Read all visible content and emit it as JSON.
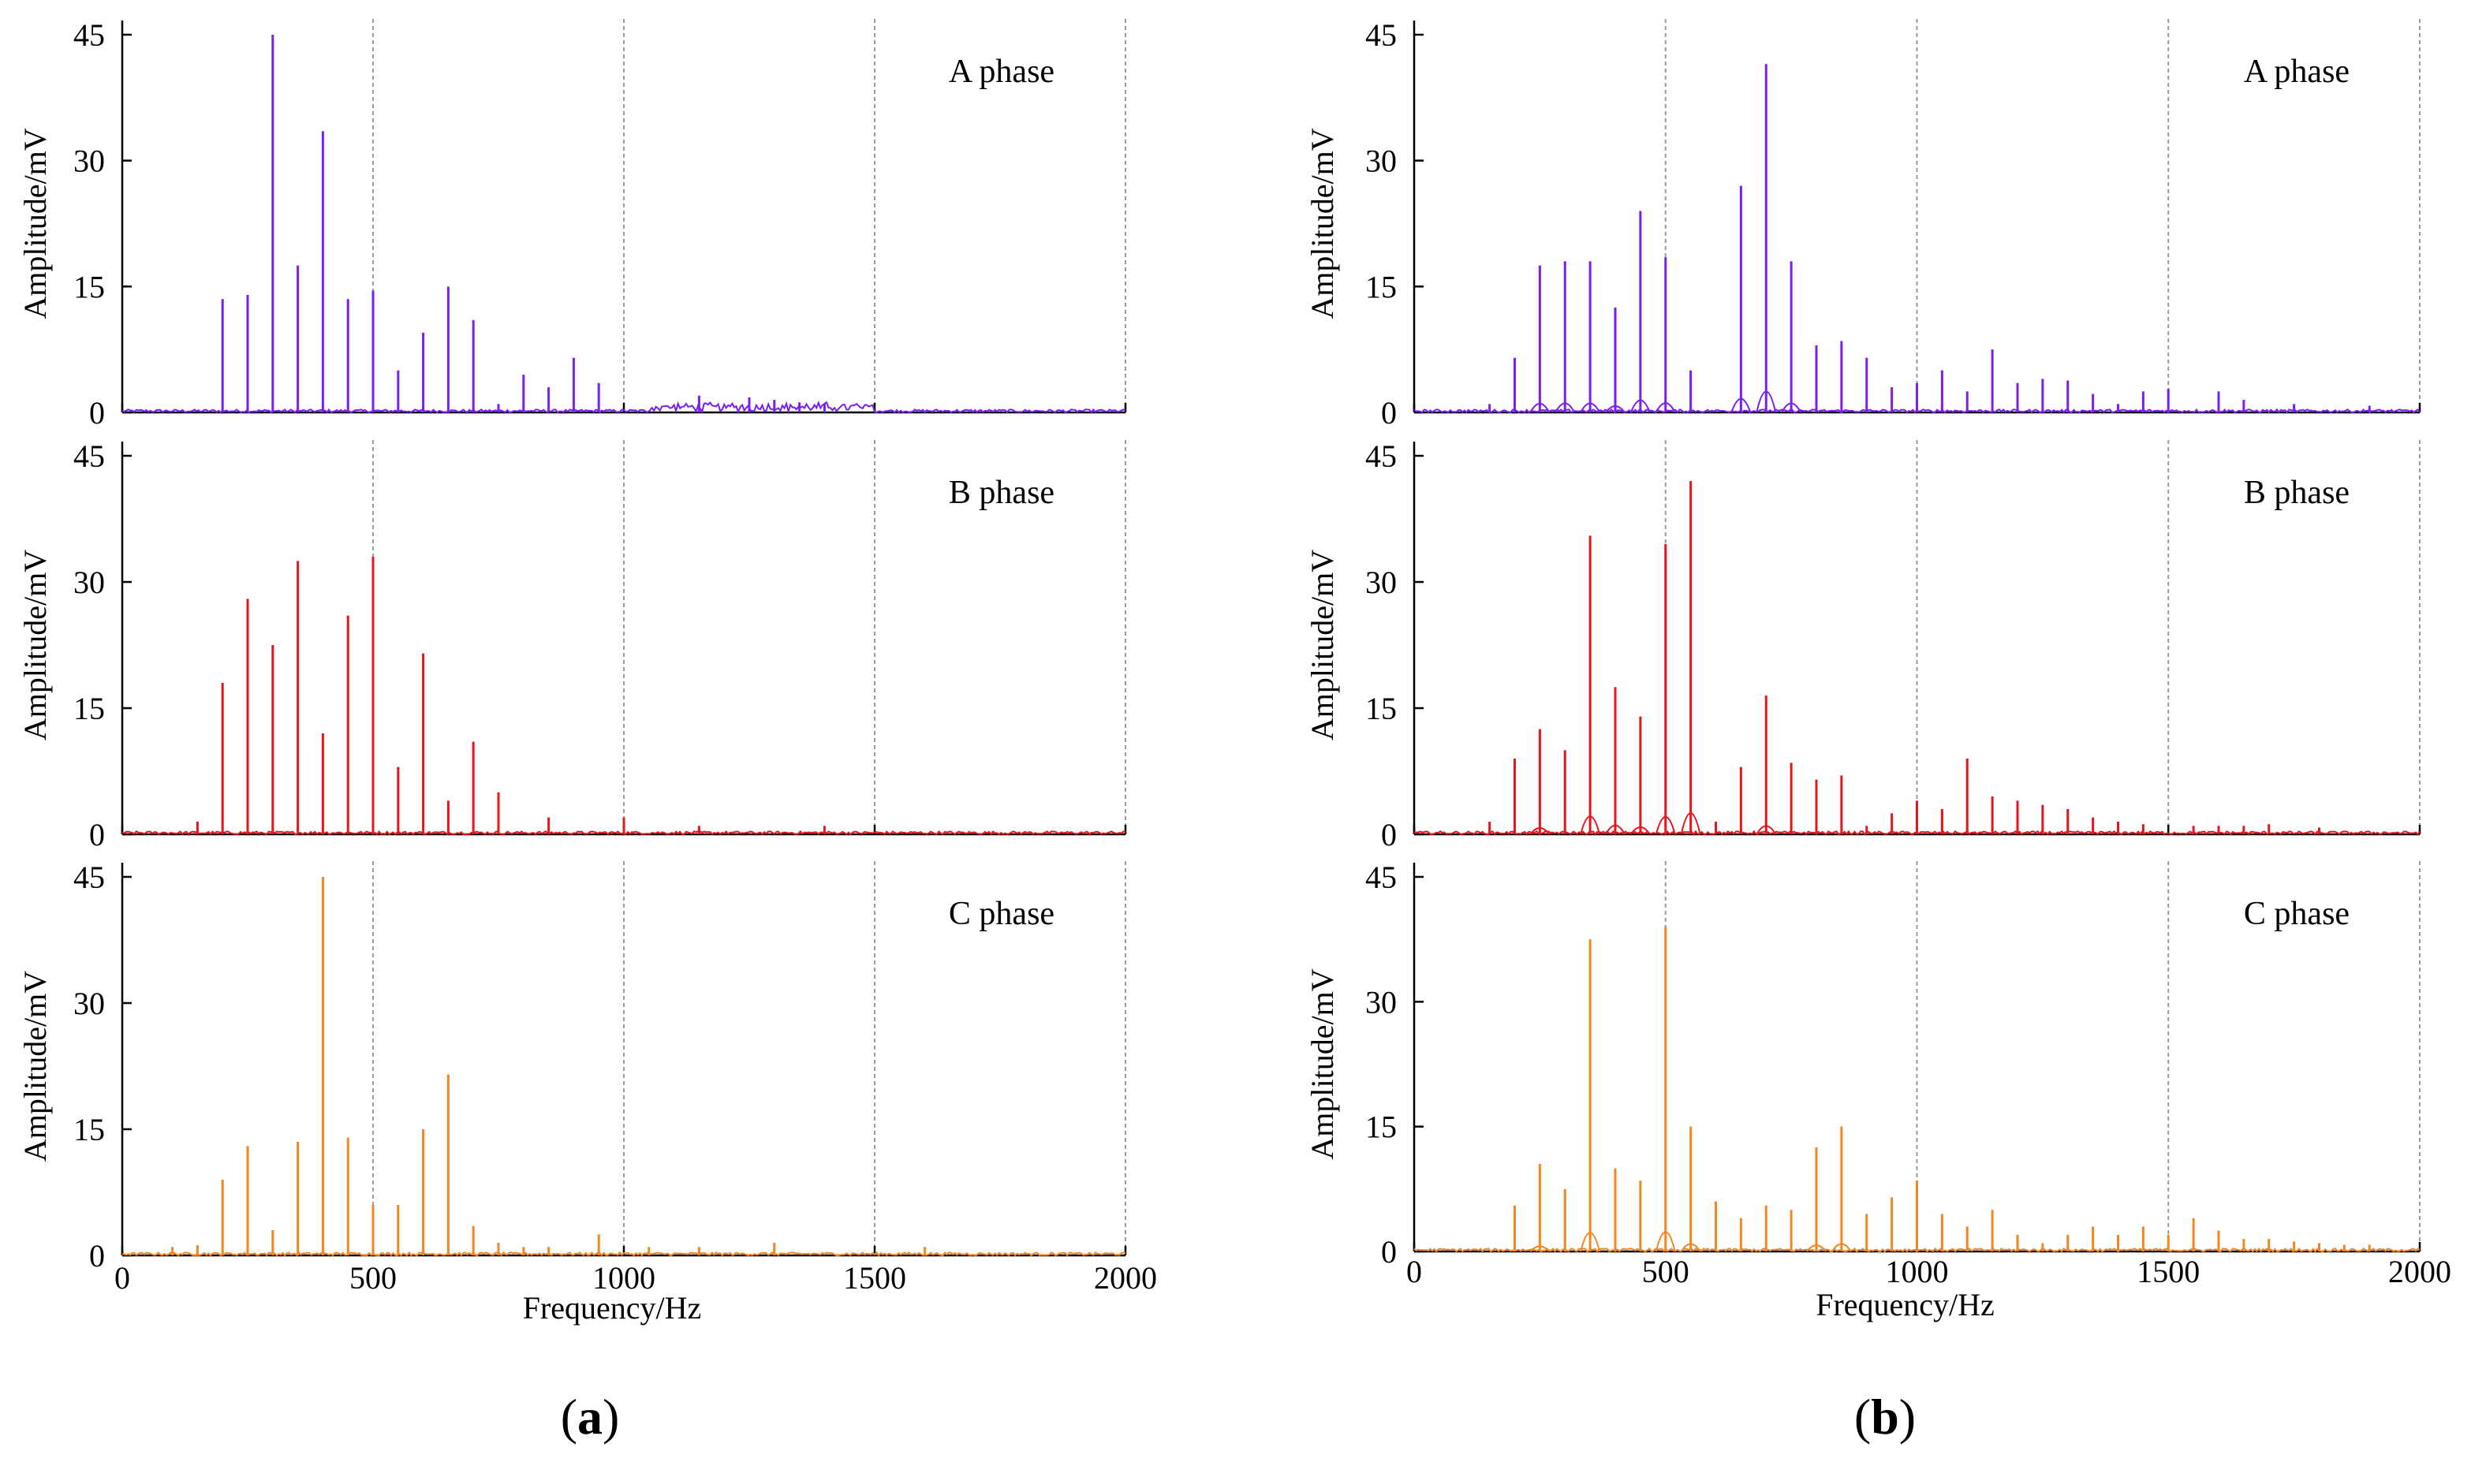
{
  "chart_data": [
    {
      "type": "line",
      "id": "a",
      "panel_label": "a",
      "xlabel": "Frequency/Hz",
      "ylabel": "Amplitude/mV",
      "xlim": [
        0,
        2000
      ],
      "ylim": [
        0,
        45
      ],
      "xticks": [
        0,
        500,
        1000,
        1500,
        2000
      ],
      "yticks": [
        0,
        15,
        30,
        45
      ],
      "grid": "vertical dashed",
      "subplots": [
        {
          "phase": "A phase",
          "color": "#7a1ff0",
          "peaks": [
            {
              "f": 200,
              "a": 13.5
            },
            {
              "f": 250,
              "a": 14
            },
            {
              "f": 300,
              "a": 45
            },
            {
              "f": 350,
              "a": 17.5
            },
            {
              "f": 400,
              "a": 33.5
            },
            {
              "f": 450,
              "a": 13.5
            },
            {
              "f": 500,
              "a": 14.5
            },
            {
              "f": 550,
              "a": 5
            },
            {
              "f": 600,
              "a": 9.5
            },
            {
              "f": 650,
              "a": 15
            },
            {
              "f": 700,
              "a": 11
            },
            {
              "f": 750,
              "a": 1
            },
            {
              "f": 800,
              "a": 4.5
            },
            {
              "f": 850,
              "a": 3
            },
            {
              "f": 900,
              "a": 6.5
            },
            {
              "f": 950,
              "a": 3.5
            },
            {
              "f": 1150,
              "a": 2
            },
            {
              "f": 1250,
              "a": 1.8
            },
            {
              "f": 1300,
              "a": 1.5
            },
            {
              "f": 1350,
              "a": 1.2
            },
            {
              "f": 1400,
              "a": 1
            }
          ]
        },
        {
          "phase": "B phase",
          "color": "#e8141a",
          "peaks": [
            {
              "f": 150,
              "a": 1.5
            },
            {
              "f": 200,
              "a": 18
            },
            {
              "f": 250,
              "a": 28
            },
            {
              "f": 300,
              "a": 22.5
            },
            {
              "f": 350,
              "a": 32.5
            },
            {
              "f": 400,
              "a": 12
            },
            {
              "f": 450,
              "a": 26
            },
            {
              "f": 500,
              "a": 33
            },
            {
              "f": 550,
              "a": 8
            },
            {
              "f": 600,
              "a": 21.5
            },
            {
              "f": 650,
              "a": 4
            },
            {
              "f": 700,
              "a": 11
            },
            {
              "f": 750,
              "a": 5
            },
            {
              "f": 850,
              "a": 2
            },
            {
              "f": 1000,
              "a": 2
            },
            {
              "f": 1150,
              "a": 1
            },
            {
              "f": 1400,
              "a": 1
            }
          ]
        },
        {
          "phase": "C phase",
          "color": "#f5861f",
          "peaks": [
            {
              "f": 100,
              "a": 1
            },
            {
              "f": 150,
              "a": 1.2
            },
            {
              "f": 200,
              "a": 9
            },
            {
              "f": 250,
              "a": 13
            },
            {
              "f": 300,
              "a": 3
            },
            {
              "f": 350,
              "a": 13.5
            },
            {
              "f": 400,
              "a": 45
            },
            {
              "f": 450,
              "a": 14
            },
            {
              "f": 500,
              "a": 6
            },
            {
              "f": 550,
              "a": 6
            },
            {
              "f": 600,
              "a": 15
            },
            {
              "f": 650,
              "a": 21.5
            },
            {
              "f": 700,
              "a": 3.5
            },
            {
              "f": 750,
              "a": 1.5
            },
            {
              "f": 800,
              "a": 1
            },
            {
              "f": 850,
              "a": 1
            },
            {
              "f": 950,
              "a": 2.5
            },
            {
              "f": 1050,
              "a": 1
            },
            {
              "f": 1150,
              "a": 1
            },
            {
              "f": 1300,
              "a": 1.5
            },
            {
              "f": 1600,
              "a": 1
            }
          ]
        }
      ]
    },
    {
      "type": "line",
      "id": "b",
      "panel_label": "b",
      "xlabel": "Frequency/Hz",
      "ylabel": "Amplitude/mV",
      "xlim": [
        0,
        2000
      ],
      "ylim": [
        0,
        45
      ],
      "xticks": [
        0,
        500,
        1000,
        1500,
        2000
      ],
      "yticks": [
        0,
        15,
        30,
        45
      ],
      "grid": "vertical dashed",
      "subplots": [
        {
          "phase": "A phase",
          "color": "#7a1ff0",
          "peaks": [
            {
              "f": 150,
              "a": 1
            },
            {
              "f": 200,
              "a": 6.5
            },
            {
              "f": 250,
              "a": 17.5
            },
            {
              "f": 300,
              "a": 18
            },
            {
              "f": 350,
              "a": 18
            },
            {
              "f": 400,
              "a": 12.5
            },
            {
              "f": 450,
              "a": 24
            },
            {
              "f": 500,
              "a": 18.5
            },
            {
              "f": 550,
              "a": 5
            },
            {
              "f": 650,
              "a": 27
            },
            {
              "f": 700,
              "a": 41.5
            },
            {
              "f": 750,
              "a": 18
            },
            {
              "f": 800,
              "a": 8
            },
            {
              "f": 850,
              "a": 8.5
            },
            {
              "f": 900,
              "a": 6.5
            },
            {
              "f": 950,
              "a": 3
            },
            {
              "f": 1000,
              "a": 3.5
            },
            {
              "f": 1050,
              "a": 5
            },
            {
              "f": 1100,
              "a": 2.5
            },
            {
              "f": 1150,
              "a": 7.5
            },
            {
              "f": 1200,
              "a": 3.5
            },
            {
              "f": 1250,
              "a": 4
            },
            {
              "f": 1300,
              "a": 3.8
            },
            {
              "f": 1350,
              "a": 2.2
            },
            {
              "f": 1400,
              "a": 1
            },
            {
              "f": 1450,
              "a": 2.5
            },
            {
              "f": 1500,
              "a": 2.8
            },
            {
              "f": 1600,
              "a": 2.5
            },
            {
              "f": 1650,
              "a": 1.5
            },
            {
              "f": 1750,
              "a": 1
            },
            {
              "f": 1900,
              "a": 0.8
            }
          ]
        },
        {
          "phase": "B phase",
          "color": "#e8141a",
          "peaks": [
            {
              "f": 150,
              "a": 1.5
            },
            {
              "f": 200,
              "a": 9
            },
            {
              "f": 250,
              "a": 12.5
            },
            {
              "f": 300,
              "a": 10
            },
            {
              "f": 350,
              "a": 35.5
            },
            {
              "f": 400,
              "a": 17.5
            },
            {
              "f": 450,
              "a": 14
            },
            {
              "f": 500,
              "a": 34.5
            },
            {
              "f": 550,
              "a": 42
            },
            {
              "f": 600,
              "a": 1.5
            },
            {
              "f": 650,
              "a": 8
            },
            {
              "f": 700,
              "a": 16.5
            },
            {
              "f": 750,
              "a": 8.5
            },
            {
              "f": 800,
              "a": 6.5
            },
            {
              "f": 850,
              "a": 7
            },
            {
              "f": 900,
              "a": 1
            },
            {
              "f": 950,
              "a": 2.5
            },
            {
              "f": 1000,
              "a": 4
            },
            {
              "f": 1050,
              "a": 3
            },
            {
              "f": 1100,
              "a": 9
            },
            {
              "f": 1150,
              "a": 4.5
            },
            {
              "f": 1200,
              "a": 4
            },
            {
              "f": 1250,
              "a": 3.5
            },
            {
              "f": 1300,
              "a": 3
            },
            {
              "f": 1350,
              "a": 2
            },
            {
              "f": 1400,
              "a": 1.5
            },
            {
              "f": 1450,
              "a": 1.2
            },
            {
              "f": 1550,
              "a": 1
            },
            {
              "f": 1600,
              "a": 1
            },
            {
              "f": 1650,
              "a": 1
            },
            {
              "f": 1700,
              "a": 1.2
            },
            {
              "f": 1800,
              "a": 0.8
            }
          ]
        },
        {
          "phase": "C phase",
          "color": "#f5861f",
          "peaks": [
            {
              "f": 200,
              "a": 5.5
            },
            {
              "f": 250,
              "a": 10.5
            },
            {
              "f": 300,
              "a": 7.5
            },
            {
              "f": 350,
              "a": 37.5
            },
            {
              "f": 400,
              "a": 10
            },
            {
              "f": 450,
              "a": 8.5
            },
            {
              "f": 500,
              "a": 39
            },
            {
              "f": 550,
              "a": 15
            },
            {
              "f": 600,
              "a": 6
            },
            {
              "f": 650,
              "a": 4
            },
            {
              "f": 700,
              "a": 5.5
            },
            {
              "f": 750,
              "a": 5
            },
            {
              "f": 800,
              "a": 12.5
            },
            {
              "f": 850,
              "a": 15
            },
            {
              "f": 900,
              "a": 4.5
            },
            {
              "f": 950,
              "a": 6.5
            },
            {
              "f": 1000,
              "a": 8.5
            },
            {
              "f": 1050,
              "a": 4.5
            },
            {
              "f": 1100,
              "a": 3
            },
            {
              "f": 1150,
              "a": 5
            },
            {
              "f": 1200,
              "a": 2
            },
            {
              "f": 1250,
              "a": 1
            },
            {
              "f": 1300,
              "a": 2
            },
            {
              "f": 1350,
              "a": 3
            },
            {
              "f": 1400,
              "a": 2
            },
            {
              "f": 1450,
              "a": 3
            },
            {
              "f": 1500,
              "a": 2
            },
            {
              "f": 1550,
              "a": 4
            },
            {
              "f": 1600,
              "a": 2.5
            },
            {
              "f": 1650,
              "a": 1.5
            },
            {
              "f": 1700,
              "a": 1.5
            },
            {
              "f": 1750,
              "a": 1.2
            },
            {
              "f": 1800,
              "a": 1
            },
            {
              "f": 1850,
              "a": 0.8
            },
            {
              "f": 1900,
              "a": 0.8
            }
          ]
        }
      ]
    }
  ]
}
